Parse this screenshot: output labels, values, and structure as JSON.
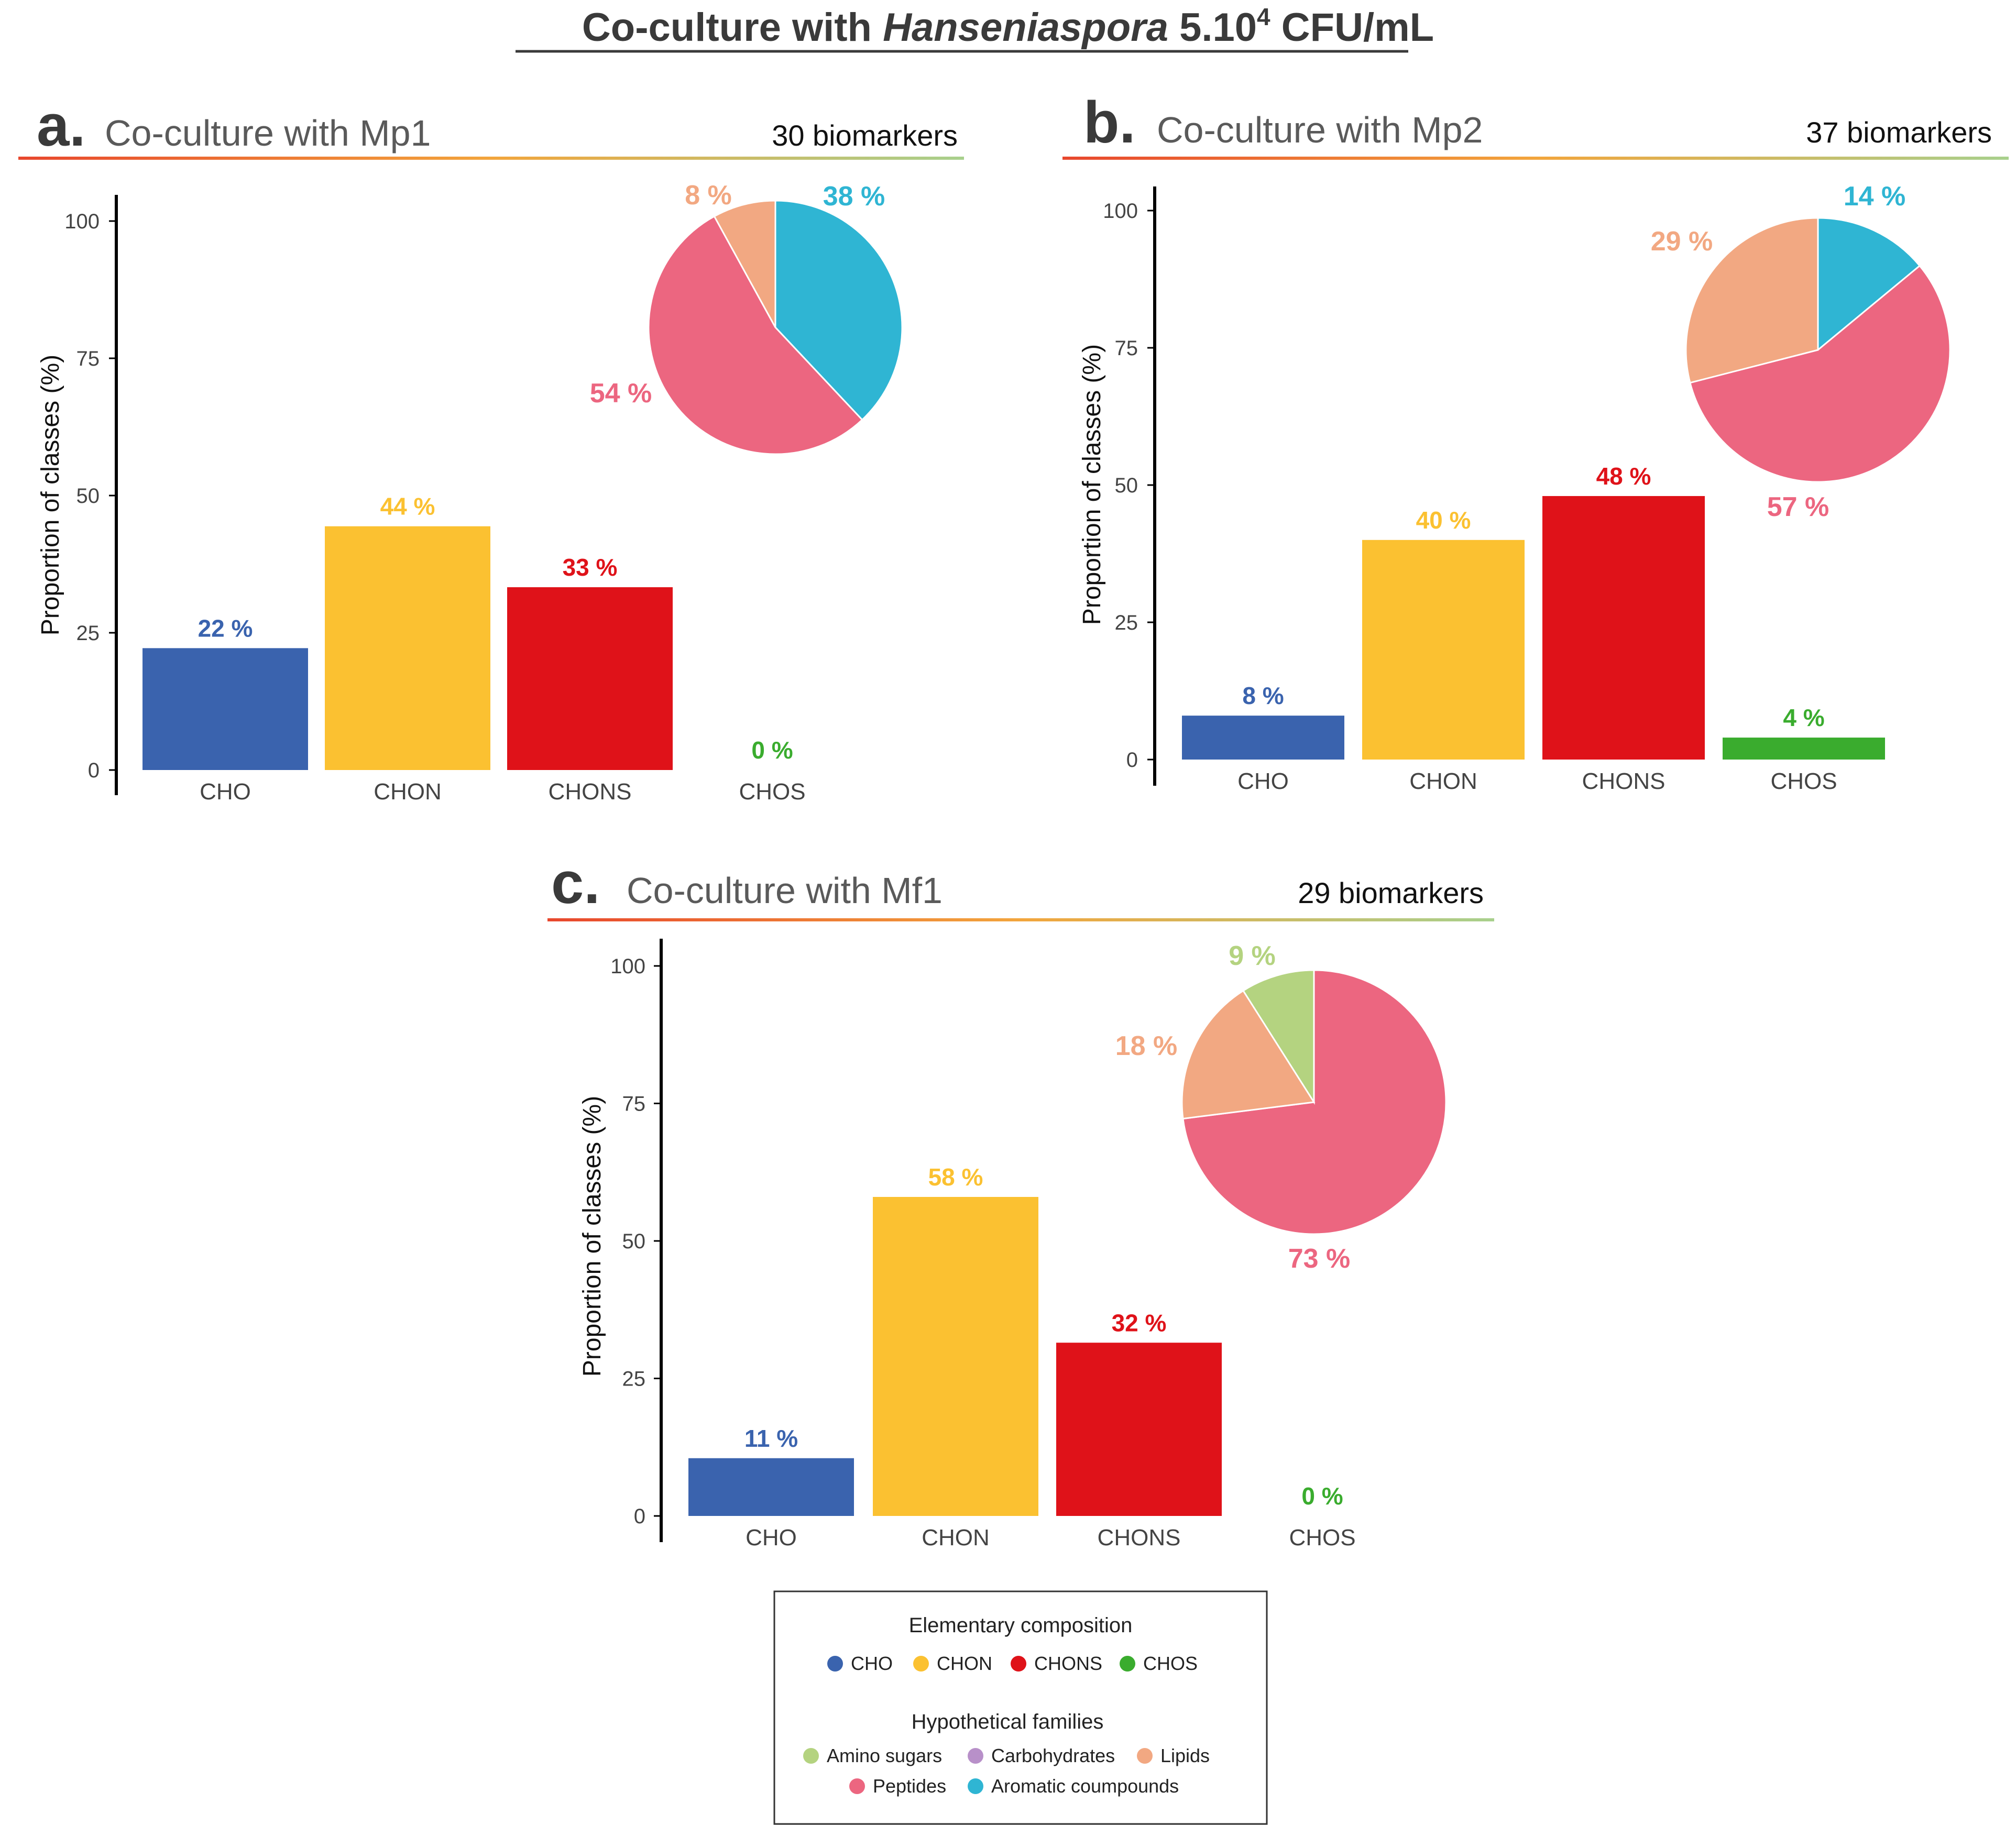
{
  "figure": {
    "title_parts": [
      "Co-culture with ",
      "Hanseniaspora",
      " 5.10",
      "4",
      " CFU/mL"
    ]
  },
  "colors": {
    "CHO": "#3a63ae",
    "CHON": "#fbc131",
    "CHONS": "#df1219",
    "CHOS": "#3aac2e",
    "Amino sugars": "#b4d380",
    "Carbohydrates": "#b890c9",
    "Lipids": "#f2a882",
    "Peptides": "#ec6680",
    "Aromatic coumpounds": "#2fb5d3"
  },
  "chart_data": [
    {
      "type": "bar",
      "panel_letter": "a.",
      "title": "Co-culture with Mp1",
      "biomarkers": "30  biomarkers",
      "ylabel": "Proportion of classes (%)",
      "xlabel": "",
      "ylim": [
        0,
        100
      ],
      "yticks": [
        0,
        25,
        50,
        75,
        100
      ],
      "categories": [
        "CHO",
        "CHON",
        "CHONS",
        "CHOS"
      ],
      "values": [
        22.2,
        44.4,
        33.3,
        0
      ],
      "value_labels": [
        "22 %",
        "44 %",
        "33 %",
        "0 %"
      ],
      "pie": {
        "type": "pie",
        "slices": [
          {
            "family": "Aromatic coumpounds",
            "value": 38,
            "label": "38 %"
          },
          {
            "family": "Peptides",
            "value": 54,
            "label": "54 %"
          },
          {
            "family": "Lipids",
            "value": 8,
            "label": "8 %"
          }
        ]
      }
    },
    {
      "type": "bar",
      "panel_letter": "b.",
      "title": "Co-culture with Mp2",
      "biomarkers": "37 biomarkers",
      "ylabel": "Proportion of classes (%)",
      "xlabel": "",
      "ylim": [
        0,
        100
      ],
      "yticks": [
        0,
        25,
        50,
        75,
        100
      ],
      "categories": [
        "CHO",
        "CHON",
        "CHONS",
        "CHOS"
      ],
      "values": [
        8,
        40,
        48,
        4
      ],
      "value_labels": [
        "8 %",
        "40 %",
        "48 %",
        "4 %"
      ],
      "pie": {
        "type": "pie",
        "slices": [
          {
            "family": "Aromatic coumpounds",
            "value": 14,
            "label": "14 %"
          },
          {
            "family": "Peptides",
            "value": 57,
            "label": "57 %"
          },
          {
            "family": "Lipids",
            "value": 29,
            "label": "29 %"
          }
        ]
      }
    },
    {
      "type": "bar",
      "panel_letter": "c.",
      "title": "Co-culture with Mf1",
      "biomarkers": "29 biomarkers",
      "ylabel": "Proportion of classes (%)",
      "xlabel": "",
      "ylim": [
        0,
        100
      ],
      "yticks": [
        0,
        25,
        50,
        75,
        100
      ],
      "categories": [
        "CHO",
        "CHON",
        "CHONS",
        "CHOS"
      ],
      "values": [
        10.5,
        58,
        31.5,
        0
      ],
      "value_labels": [
        "11 %",
        "58 %",
        "32 %",
        "0 %"
      ],
      "pie": {
        "type": "pie",
        "slices": [
          {
            "family": "Peptides",
            "value": 73,
            "label": "73 %"
          },
          {
            "family": "Lipids",
            "value": 18,
            "label": "18 %"
          },
          {
            "family": "Amino sugars",
            "value": 9,
            "label": "9 %"
          }
        ]
      }
    }
  ],
  "legend": {
    "composition_title": "Elementary composition",
    "composition_items": [
      "CHO",
      "CHON",
      "CHONS",
      "CHOS"
    ],
    "families_title": "Hypothetical families",
    "families_row1": [
      "Amino sugars",
      "Carbohydrates",
      "Lipids"
    ],
    "families_row2": [
      "Peptides",
      "Aromatic coumpounds"
    ]
  }
}
